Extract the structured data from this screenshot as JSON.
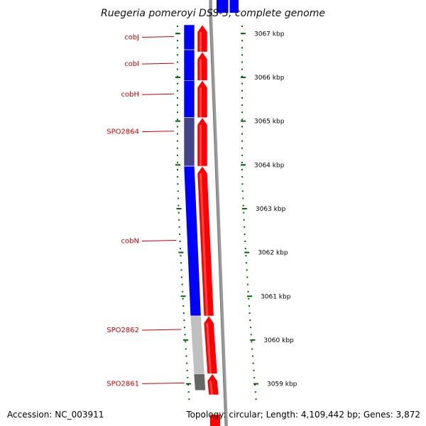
{
  "title": "Ruegeria pomeroyi DSS-3, complete genome",
  "footer": {
    "accession": "Accession: NC_003911",
    "topology": "Topology: circular; Length: 4,109,442 bp; Genes: 3,872"
  },
  "colors": {
    "forward_cds": "#ff0000",
    "reverse_cds": "#0000ff",
    "reverse_cds_dim": "#444488",
    "reverse_cds_light": "#c0c0c0",
    "reverse_cds_dark": "#666666",
    "backbone": "#888888",
    "ticks": "#006600",
    "labels": "#cc0000"
  },
  "axis": {
    "unit": "kbp",
    "min": 3058.75,
    "max": 3067.28
  },
  "ticks": [
    {
      "value": 3067,
      "label": "3067 kbp"
    },
    {
      "value": 3066,
      "label": "3066 kbp"
    },
    {
      "value": 3065,
      "label": "3065 kbp"
    },
    {
      "value": 3064,
      "label": "3064 kbp"
    },
    {
      "value": 3063,
      "label": "3063 kbp"
    },
    {
      "value": 3062,
      "label": "3062 kbp"
    },
    {
      "value": 3061,
      "label": "3061 kbp"
    },
    {
      "value": 3060,
      "label": "3060 kbp"
    },
    {
      "value": 3059,
      "label": "3059 kbp"
    }
  ],
  "reverse_genes": [
    {
      "name": "cobJ",
      "start": 3066.63,
      "end": 3067.2,
      "color": "#0000ff"
    },
    {
      "name": "cobI",
      "start": 3065.93,
      "end": 3066.63,
      "color": "#0000ff"
    },
    {
      "name": "cobH",
      "start": 3065.08,
      "end": 3065.93,
      "color": "#0000ff"
    },
    {
      "name": "SPO2864",
      "start": 3063.97,
      "end": 3065.08,
      "color": "#444488"
    },
    {
      "name": "cobN",
      "start": 3060.55,
      "end": 3063.97,
      "color": "#0000ff"
    },
    {
      "name": "SPO2862",
      "start": 3059.23,
      "end": 3060.55,
      "color": "#c0c0c0"
    },
    {
      "name": "SPO2861",
      "start": 3058.85,
      "end": 3059.23,
      "color": "#666666"
    }
  ],
  "forward_features": [
    {
      "start": 3066.58,
      "end": 3067.2
    },
    {
      "start": 3065.93,
      "end": 3066.58
    },
    {
      "start": 3065.08,
      "end": 3065.93
    },
    {
      "start": 3063.97,
      "end": 3065.08
    },
    {
      "start": 3060.55,
      "end": 3063.97
    },
    {
      "start": 3059.23,
      "end": 3060.55
    },
    {
      "start": 3058.75,
      "end": 3059.23
    }
  ]
}
